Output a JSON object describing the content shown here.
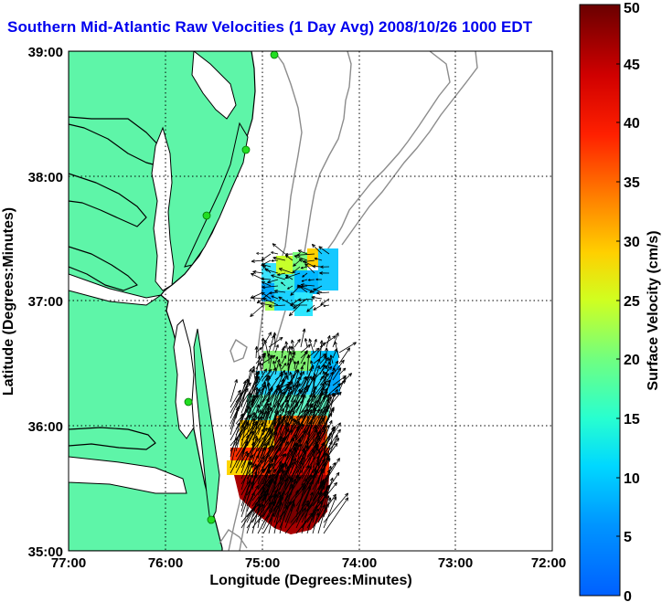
{
  "title": "Southern Mid-Atlantic Raw Velocities (1 Day Avg) 2008/10/26 1000 EDT",
  "map": {
    "xlabel": "Longitude (Degrees:Minutes)",
    "ylabel": "Latitude (Degrees:Minutes)",
    "lon_range": [
      -77,
      -72
    ],
    "lat_range": [
      35,
      39
    ],
    "lon_ticks": [
      "77:00",
      "76:00",
      "75:00",
      "74:00",
      "73:00",
      "72:00"
    ],
    "lat_ticks": [
      "39:00",
      "38:00",
      "37:00",
      "36:00",
      "35:00"
    ],
    "grid": "dotted",
    "colors": {
      "land": "#5ef5a8",
      "coastline": "#000000",
      "bathymetry": "#8c8c8c",
      "station": "#22dd22"
    },
    "stations": [
      {
        "lon": -74.87,
        "lat": 38.99
      },
      {
        "lon": -75.16,
        "lat": 38.24
      },
      {
        "lon": -75.52,
        "lat": 37.7
      },
      {
        "lon": -75.7,
        "lat": 36.18
      },
      {
        "lon": -75.47,
        "lat": 35.25
      }
    ]
  },
  "colorbar": {
    "label": "Surface Velocity (cm/s)",
    "range": [
      0,
      50
    ],
    "ticks": [
      "0",
      "5",
      "10",
      "15",
      "20",
      "25",
      "30",
      "35",
      "40",
      "45",
      "50"
    ],
    "colormap": "jet"
  }
}
